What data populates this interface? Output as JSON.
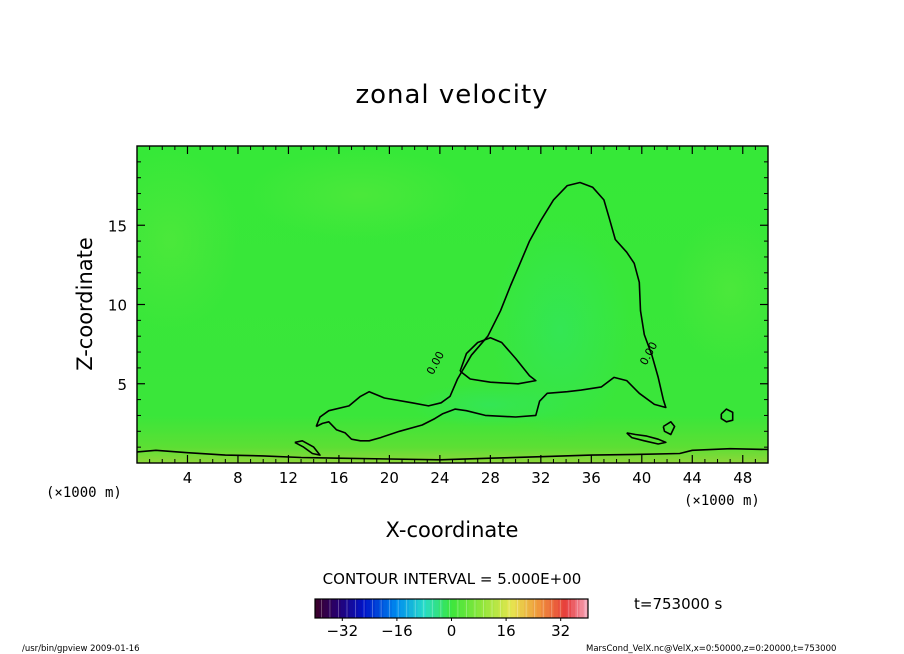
{
  "chart_data": {
    "type": "heatmap",
    "title": "zonal velocity",
    "xlabel": "X-coordinate",
    "ylabel": "Z-coordinate",
    "x_unit_left": "(×1000 m)",
    "x_unit_right": "(×1000 m)",
    "xlim": [
      0,
      50
    ],
    "ylim": [
      0,
      20
    ],
    "x_ticks": [
      4,
      8,
      12,
      16,
      20,
      24,
      28,
      32,
      36,
      40,
      44,
      48
    ],
    "y_ticks": [
      5,
      10,
      15
    ],
    "contour_interval": "CONTOUR INTERVAL = 5.000E+00",
    "contour_label": "0.00",
    "time_label": "t=753000 s",
    "colorbar": {
      "min": -40,
      "max": 40,
      "ticks": [
        -32,
        -16,
        0,
        16,
        32
      ],
      "tick_labels": [
        "−32",
        "−16",
        "0",
        "16",
        "32"
      ]
    },
    "field_range": [
      -3,
      4
    ],
    "zero_contours": [
      {
        "name": "main-plume",
        "points": [
          [
            14.2,
            2.3
          ],
          [
            14.5,
            2.9
          ],
          [
            15.2,
            3.3
          ],
          [
            16.8,
            3.6
          ],
          [
            17.7,
            4.2
          ],
          [
            18.4,
            4.5
          ],
          [
            19.6,
            4.1
          ],
          [
            21.8,
            3.8
          ],
          [
            23.1,
            3.6
          ],
          [
            24.1,
            3.8
          ],
          [
            24.8,
            4.2
          ],
          [
            25.4,
            5.3
          ],
          [
            26.5,
            6.8
          ],
          [
            27.8,
            8.0
          ],
          [
            28.8,
            9.6
          ],
          [
            29.6,
            11.2
          ],
          [
            30.3,
            12.5
          ],
          [
            31.1,
            14.0
          ],
          [
            32.0,
            15.3
          ],
          [
            33.0,
            16.6
          ],
          [
            34.1,
            17.5
          ],
          [
            35.1,
            17.7
          ],
          [
            36.1,
            17.4
          ],
          [
            37.0,
            16.6
          ],
          [
            37.4,
            15.5
          ],
          [
            37.9,
            14.1
          ],
          [
            38.8,
            13.3
          ],
          [
            39.4,
            12.6
          ],
          [
            39.8,
            11.4
          ],
          [
            39.9,
            9.6
          ],
          [
            40.2,
            8.1
          ],
          [
            40.8,
            6.8
          ],
          [
            41.3,
            5.4
          ],
          [
            41.7,
            4.0
          ],
          [
            41.9,
            3.5
          ],
          [
            41.0,
            3.7
          ],
          [
            39.8,
            4.4
          ],
          [
            38.8,
            5.2
          ],
          [
            37.8,
            5.4
          ],
          [
            36.8,
            4.8
          ],
          [
            35.2,
            4.6
          ],
          [
            34.1,
            4.5
          ],
          [
            32.5,
            4.4
          ],
          [
            31.9,
            3.9
          ],
          [
            31.6,
            3.0
          ],
          [
            30.0,
            2.9
          ],
          [
            27.6,
            3.0
          ],
          [
            26.1,
            3.3
          ],
          [
            25.2,
            3.4
          ],
          [
            24.2,
            3.1
          ],
          [
            23.6,
            2.8
          ],
          [
            22.6,
            2.4
          ],
          [
            20.8,
            2.0
          ],
          [
            19.3,
            1.6
          ],
          [
            18.4,
            1.4
          ],
          [
            17.7,
            1.4
          ],
          [
            17.0,
            1.5
          ],
          [
            16.5,
            1.9
          ],
          [
            15.8,
            2.1
          ],
          [
            15.2,
            2.6
          ],
          [
            14.7,
            2.5
          ],
          [
            14.2,
            2.3
          ]
        ]
      },
      {
        "name": "inner-loop",
        "points": [
          [
            25.6,
            5.8
          ],
          [
            26.1,
            6.9
          ],
          [
            27.0,
            7.6
          ],
          [
            28.0,
            7.9
          ],
          [
            28.9,
            7.6
          ],
          [
            30.0,
            6.6
          ],
          [
            31.1,
            5.5
          ],
          [
            31.6,
            5.2
          ],
          [
            30.2,
            5.0
          ],
          [
            28.0,
            5.1
          ],
          [
            26.4,
            5.3
          ],
          [
            25.6,
            5.8
          ]
        ]
      },
      {
        "name": "small-loop-47",
        "points": [
          [
            46.3,
            3.1
          ],
          [
            46.7,
            3.4
          ],
          [
            47.2,
            3.2
          ],
          [
            47.2,
            2.7
          ],
          [
            46.7,
            2.6
          ],
          [
            46.3,
            2.8
          ],
          [
            46.3,
            3.1
          ]
        ]
      },
      {
        "name": "small-loop-40",
        "points": [
          [
            38.8,
            1.9
          ],
          [
            39.5,
            1.8
          ],
          [
            40.4,
            1.7
          ],
          [
            41.3,
            1.5
          ],
          [
            41.9,
            1.3
          ],
          [
            41.3,
            1.2
          ],
          [
            40.2,
            1.4
          ],
          [
            39.2,
            1.6
          ],
          [
            38.8,
            1.9
          ]
        ]
      },
      {
        "name": "small-loop-42",
        "points": [
          [
            41.7,
            2.3
          ],
          [
            42.3,
            2.6
          ],
          [
            42.6,
            2.3
          ],
          [
            42.3,
            1.8
          ],
          [
            41.8,
            2.0
          ],
          [
            41.7,
            2.3
          ]
        ]
      },
      {
        "name": "small-loop-13",
        "points": [
          [
            12.5,
            1.3
          ],
          [
            13.1,
            1.4
          ],
          [
            14.0,
            1.0
          ],
          [
            14.5,
            0.5
          ],
          [
            13.9,
            0.6
          ],
          [
            13.2,
            1.0
          ],
          [
            12.5,
            1.3
          ]
        ]
      },
      {
        "name": "bottom-layer",
        "points": [
          [
            0,
            0.7
          ],
          [
            1.5,
            0.8
          ],
          [
            4,
            0.65
          ],
          [
            7,
            0.5
          ],
          [
            10,
            0.45
          ],
          [
            13,
            0.35
          ],
          [
            16,
            0.3
          ],
          [
            20,
            0.25
          ],
          [
            24,
            0.2
          ],
          [
            28,
            0.3
          ],
          [
            32,
            0.4
          ],
          [
            36,
            0.5
          ],
          [
            40,
            0.55
          ],
          [
            43,
            0.6
          ],
          [
            44,
            0.8
          ],
          [
            47,
            0.9
          ],
          [
            50,
            0.85
          ]
        ]
      }
    ],
    "contour_label_positions": [
      [
        23.9,
        6.2
      ],
      [
        40.8,
        6.8
      ]
    ]
  },
  "footer": {
    "left": "/usr/bin/gpview  2009-01-16",
    "right": "MarsCond_VelX.nc@VelX,x=0:50000,z=0:20000,t=753000"
  }
}
